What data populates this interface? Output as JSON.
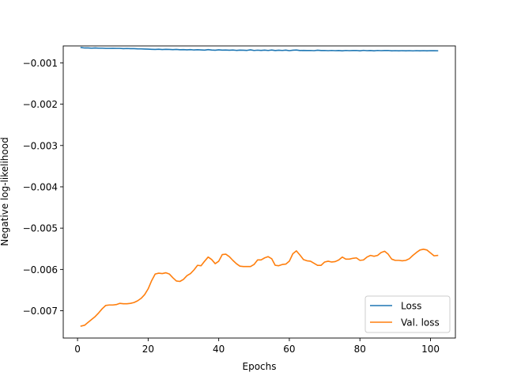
{
  "chart_data": {
    "type": "line",
    "title": "",
    "xlabel": "Epochs",
    "ylabel": "Negative log-likelihood",
    "xlim": [
      -4.05,
      107.05
    ],
    "ylim": [
      -0.00766,
      -0.00059
    ],
    "xticks": [
      0,
      20,
      40,
      60,
      80,
      100
    ],
    "xtick_labels": [
      "0",
      "20",
      "40",
      "60",
      "80",
      "100"
    ],
    "yticks": [
      -0.007,
      -0.006,
      -0.005,
      -0.004,
      -0.003,
      -0.002,
      -0.001
    ],
    "ytick_labels": [
      "−0.007",
      "−0.006",
      "−0.005",
      "−0.004",
      "−0.003",
      "−0.002",
      "−0.001"
    ],
    "grid": false,
    "legend_position": "lower-right",
    "series": [
      {
        "name": "Loss",
        "color": "#1f77b4",
        "x": [
          1,
          2,
          3,
          4,
          5,
          6,
          7,
          8,
          9,
          10,
          11,
          12,
          13,
          14,
          15,
          16,
          17,
          18,
          19,
          20,
          21,
          22,
          23,
          24,
          25,
          26,
          27,
          28,
          29,
          30,
          31,
          32,
          33,
          34,
          35,
          36,
          37,
          38,
          39,
          40,
          41,
          42,
          43,
          44,
          45,
          46,
          47,
          48,
          49,
          50,
          51,
          52,
          53,
          54,
          55,
          56,
          57,
          58,
          59,
          60,
          61,
          62,
          63,
          64,
          65,
          66,
          67,
          68,
          69,
          70,
          71,
          72,
          73,
          74,
          75,
          76,
          77,
          78,
          79,
          80,
          81,
          82,
          83,
          84,
          85,
          86,
          87,
          88,
          89,
          90,
          91,
          92,
          93,
          94,
          95,
          96,
          97,
          98,
          99,
          100,
          101,
          102
        ],
        "y": [
          -0.00063,
          -0.00064,
          -0.00064,
          -0.000645,
          -0.00064,
          -0.000645,
          -0.000645,
          -0.00065,
          -0.00065,
          -0.000648,
          -0.00065,
          -0.00065,
          -0.000655,
          -0.000652,
          -0.000655,
          -0.000655,
          -0.00066,
          -0.000662,
          -0.000665,
          -0.000668,
          -0.000672,
          -0.000675,
          -0.00067,
          -0.000678,
          -0.000672,
          -0.000675,
          -0.00068,
          -0.000675,
          -0.000682,
          -0.00068,
          -0.000685,
          -0.00068,
          -0.000688,
          -0.000683,
          -0.000688,
          -0.000692,
          -0.00068,
          -0.00069,
          -0.000695,
          -0.000685,
          -0.000692,
          -0.00069,
          -0.000695,
          -0.00069,
          -0.000698,
          -0.000692,
          -0.000695,
          -0.000698,
          -0.000685,
          -0.0007,
          -0.000693,
          -0.000698,
          -0.000692,
          -0.0007,
          -0.00069,
          -0.000702,
          -0.000695,
          -0.0007,
          -0.000692,
          -0.000705,
          -0.000695,
          -0.00069,
          -0.000702,
          -0.000698,
          -0.000702,
          -0.0007,
          -0.000705,
          -0.000695,
          -0.000702,
          -0.0007,
          -0.000705,
          -0.0007,
          -0.000705,
          -0.000702,
          -0.000708,
          -0.0007,
          -0.000705,
          -0.000702,
          -0.0007,
          -0.000708,
          -0.000698,
          -0.000705,
          -0.000702,
          -0.000708,
          -0.0007,
          -0.000705,
          -0.000702,
          -0.0007,
          -0.000708,
          -0.000705,
          -0.000708,
          -0.000705,
          -0.000708,
          -0.000705,
          -0.00071,
          -0.000705,
          -0.000708,
          -0.000705,
          -0.000708,
          -0.000705,
          -0.000706,
          -0.000707
        ]
      },
      {
        "name": "Val. loss",
        "color": "#ff7f0e",
        "x": [
          1,
          2,
          3,
          4,
          5,
          6,
          7,
          8,
          9,
          10,
          11,
          12,
          13,
          14,
          15,
          16,
          17,
          18,
          19,
          20,
          21,
          22,
          23,
          24,
          25,
          26,
          27,
          28,
          29,
          30,
          31,
          32,
          33,
          34,
          35,
          36,
          37,
          38,
          39,
          40,
          41,
          42,
          43,
          44,
          45,
          46,
          47,
          48,
          49,
          50,
          51,
          52,
          53,
          54,
          55,
          56,
          57,
          58,
          59,
          60,
          61,
          62,
          63,
          64,
          65,
          66,
          67,
          68,
          69,
          70,
          71,
          72,
          73,
          74,
          75,
          76,
          77,
          78,
          79,
          80,
          81,
          82,
          83,
          84,
          85,
          86,
          87,
          88,
          89,
          90,
          91,
          92,
          93,
          94,
          95,
          96,
          97,
          98,
          99,
          100,
          101,
          102
        ],
        "y": [
          -0.00737,
          -0.00735,
          -0.00728,
          -0.00721,
          -0.00714,
          -0.00705,
          -0.00695,
          -0.00687,
          -0.00686,
          -0.00686,
          -0.00685,
          -0.00682,
          -0.00683,
          -0.00683,
          -0.00682,
          -0.0068,
          -0.00676,
          -0.0067,
          -0.00661,
          -0.00647,
          -0.00627,
          -0.00611,
          -0.00609,
          -0.0061,
          -0.00608,
          -0.00611,
          -0.0062,
          -0.00628,
          -0.00629,
          -0.00624,
          -0.00615,
          -0.0061,
          -0.00601,
          -0.0059,
          -0.00591,
          -0.0058,
          -0.0057,
          -0.00576,
          -0.00586,
          -0.0058,
          -0.00564,
          -0.00563,
          -0.00569,
          -0.00578,
          -0.00586,
          -0.00592,
          -0.00593,
          -0.00593,
          -0.00593,
          -0.00588,
          -0.00577,
          -0.00577,
          -0.00572,
          -0.00569,
          -0.00574,
          -0.0059,
          -0.00591,
          -0.00588,
          -0.00587,
          -0.0058,
          -0.00562,
          -0.00555,
          -0.00565,
          -0.00576,
          -0.00579,
          -0.0058,
          -0.00585,
          -0.0059,
          -0.0059,
          -0.00582,
          -0.0058,
          -0.00582,
          -0.00581,
          -0.00577,
          -0.0057,
          -0.00575,
          -0.00575,
          -0.00573,
          -0.00572,
          -0.00578,
          -0.00577,
          -0.0057,
          -0.00566,
          -0.00568,
          -0.00566,
          -0.00559,
          -0.00556,
          -0.00563,
          -0.00575,
          -0.00578,
          -0.00578,
          -0.00579,
          -0.00578,
          -0.00574,
          -0.00566,
          -0.00559,
          -0.00553,
          -0.00551,
          -0.00553,
          -0.0056,
          -0.00567,
          -0.00566
        ]
      }
    ]
  }
}
